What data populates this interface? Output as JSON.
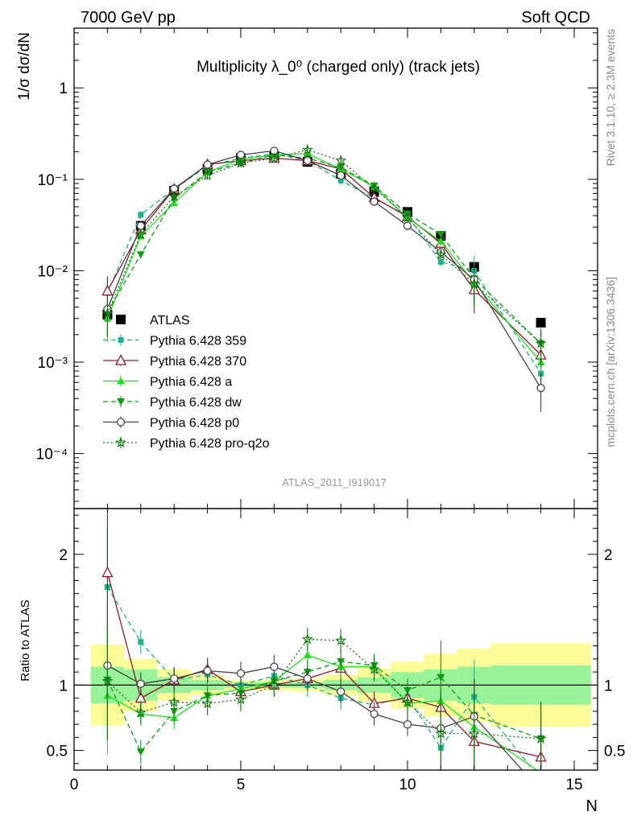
{
  "header": {
    "left": "7000 GeV pp",
    "right": "Soft QCD"
  },
  "side_labels": {
    "rivet": "Rivet 3.1.10, ≥ 2.3M events",
    "mcplots": "mcplots.cern.ch [arXiv:1306.3436]"
  },
  "analysis_id": "ATLAS_2011_I919017",
  "chart_data": [
    {
      "type": "line",
      "title": "Multiplicity λ_0⁰ (charged only) (track jets)",
      "xlabel": "",
      "ylabel": "1/σ dσ/dN",
      "yscale": "log",
      "xlim": [
        0,
        15.7
      ],
      "ylim": [
        2.5e-05,
        4.5
      ],
      "y_ticks": [
        0.0001,
        0.001,
        0.01,
        0.1,
        1
      ],
      "y_tick_labels": [
        "10⁻⁴",
        "10⁻³",
        "10⁻²",
        "10⁻¹",
        "1"
      ],
      "legend_position": "bottom-left",
      "x": [
        1,
        2,
        3,
        4,
        5,
        6,
        7,
        8,
        9,
        10,
        11,
        12,
        14
      ],
      "series": [
        {
          "name": "ATLAS",
          "color": "#000000",
          "marker": "square",
          "dash": "none",
          "values": [
            0.0033,
            0.031,
            0.075,
            0.13,
            0.17,
            0.18,
            0.155,
            0.115,
            0.073,
            0.044,
            0.024,
            0.011,
            0.0027
          ]
        },
        {
          "name": "Pythia 6.428 359",
          "color": "#1fb08d",
          "marker": "smallsquare",
          "dash": "dashed",
          "values": [
            0.0057,
            0.041,
            0.078,
            0.14,
            0.17,
            0.19,
            0.16,
            0.097,
            0.062,
            0.04,
            0.0125,
            0.01,
            0.00075
          ]
        },
        {
          "name": "Pythia 6.428 370",
          "color": "#8b1a2b",
          "marker": "triangle-open",
          "dash": "none",
          "values": [
            0.006,
            0.028,
            0.078,
            0.145,
            0.16,
            0.17,
            0.16,
            0.13,
            0.063,
            0.039,
            0.02,
            0.0062,
            0.0012
          ]
        },
        {
          "name": "Pythia 6.428 a",
          "color": "#22dd22",
          "marker": "triangle",
          "dash": "none",
          "values": [
            0.003,
            0.024,
            0.055,
            0.12,
            0.165,
            0.185,
            0.19,
            0.13,
            0.083,
            0.038,
            0.021,
            0.0074,
            0.001
          ]
        },
        {
          "name": "Pythia 6.428 dw",
          "color": "#119911",
          "marker": "triangle-down",
          "dash": "dashed",
          "values": [
            0.0035,
            0.015,
            0.062,
            0.12,
            0.15,
            0.185,
            0.17,
            0.135,
            0.085,
            0.042,
            0.025,
            0.0082,
            0.0016
          ]
        },
        {
          "name": "Pythia 6.428 p0",
          "color": "#444444",
          "marker": "circle-open",
          "dash": "none",
          "values": [
            0.0038,
            0.031,
            0.079,
            0.145,
            0.185,
            0.205,
            0.16,
            0.11,
            0.057,
            0.031,
            0.016,
            0.008,
            0.00052
          ]
        },
        {
          "name": "Pythia 6.428 pro-q2o",
          "color": "#117711",
          "marker": "star",
          "dash": "dotted",
          "values": [
            0.0034,
            0.025,
            0.065,
            0.11,
            0.15,
            0.17,
            0.21,
            0.16,
            0.08,
            0.038,
            0.015,
            0.0072,
            0.0016
          ]
        }
      ]
    },
    {
      "type": "line",
      "title": "",
      "xlabel": "N",
      "ylabel": "Ratio to ATLAS",
      "xlim": [
        0,
        15.7
      ],
      "ylim": [
        0.35,
        2.35
      ],
      "x_ticks": [
        0,
        5,
        10,
        15
      ],
      "x_tick_labels": [
        "0",
        "5",
        "10",
        "15"
      ],
      "y_ticks": [
        0.5,
        1,
        2
      ],
      "y_tick_labels": [
        "0.5",
        "1",
        "2"
      ],
      "band_edges": [
        0.5,
        1.5,
        2.5,
        3.5,
        4.5,
        5.5,
        6.5,
        7.5,
        8.5,
        9.5,
        10.5,
        11.5,
        12.5,
        15.5
      ],
      "band_inner": [
        [
          0.86,
          1.14
        ],
        [
          0.88,
          1.12
        ],
        [
          0.94,
          1.06
        ],
        [
          0.96,
          1.04
        ],
        [
          0.98,
          1.02
        ],
        [
          0.98,
          1.02
        ],
        [
          0.98,
          1.02
        ],
        [
          0.96,
          1.04
        ],
        [
          0.94,
          1.06
        ],
        [
          0.9,
          1.1
        ],
        [
          0.88,
          1.12
        ],
        [
          0.86,
          1.14
        ],
        [
          0.85,
          1.15
        ]
      ],
      "band_outer": [
        [
          0.69,
          1.31
        ],
        [
          0.8,
          1.2
        ],
        [
          0.88,
          1.12
        ],
        [
          0.92,
          1.08
        ],
        [
          0.96,
          1.04
        ],
        [
          0.96,
          1.04
        ],
        [
          0.95,
          1.05
        ],
        [
          0.92,
          1.08
        ],
        [
          0.87,
          1.13
        ],
        [
          0.82,
          1.18
        ],
        [
          0.76,
          1.24
        ],
        [
          0.72,
          1.28
        ],
        [
          0.68,
          1.32
        ]
      ],
      "x": [
        1,
        2,
        3,
        4,
        5,
        6,
        7,
        8,
        9,
        10,
        11,
        12,
        14
      ],
      "series": [
        {
          "name": "Pythia 6.428 359",
          "color": "#1fb08d",
          "marker": "smallsquare",
          "dash": "dashed",
          "values": [
            1.75,
            1.33,
            1.04,
            1.08,
            1.0,
            1.07,
            1.0,
            0.9,
            0.85,
            0.91,
            0.52,
            0.91,
            0.28
          ]
        },
        {
          "name": "Pythia 6.428 370",
          "color": "#8b1a2b",
          "marker": "triangle-open",
          "dash": "none",
          "values": [
            1.86,
            0.9,
            1.04,
            1.12,
            0.95,
            1.0,
            1.05,
            1.13,
            0.86,
            0.9,
            0.83,
            0.57,
            0.45
          ]
        },
        {
          "name": "Pythia 6.428 a",
          "color": "#22dd22",
          "marker": "triangle",
          "dash": "none",
          "values": [
            0.92,
            0.78,
            0.75,
            0.92,
            0.97,
            1.03,
            1.23,
            1.14,
            1.14,
            0.86,
            0.88,
            0.68,
            0.33
          ]
        },
        {
          "name": "Pythia 6.428 dw",
          "color": "#119911",
          "marker": "triangle-down",
          "dash": "dashed",
          "values": [
            1.04,
            0.49,
            0.8,
            0.92,
            0.94,
            1.03,
            1.1,
            1.18,
            1.15,
            0.96,
            1.06,
            0.77,
            0.59
          ]
        },
        {
          "name": "Pythia 6.428 p0",
          "color": "#444444",
          "marker": "circle-open",
          "dash": "none",
          "values": [
            1.15,
            1.01,
            1.05,
            1.11,
            1.09,
            1.14,
            1.05,
            0.95,
            0.78,
            0.7,
            0.67,
            0.76,
            0.19
          ]
        },
        {
          "name": "Pythia 6.428 pro-q2o",
          "color": "#117711",
          "marker": "star",
          "dash": "dotted",
          "values": [
            1.03,
            0.79,
            0.87,
            0.86,
            0.89,
            1.0,
            1.35,
            1.34,
            1.12,
            0.87,
            0.63,
            0.63,
            0.59
          ]
        }
      ]
    }
  ]
}
